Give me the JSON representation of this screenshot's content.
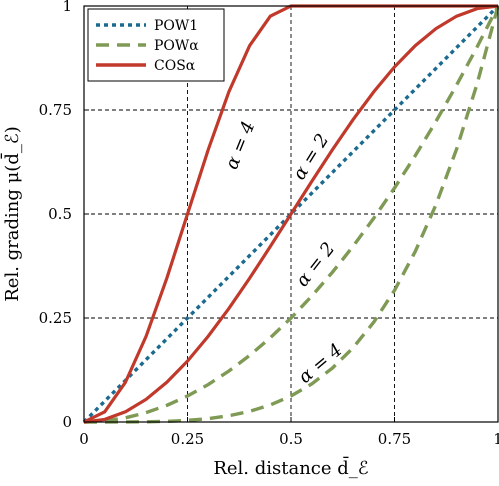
{
  "chart_data": {
    "type": "line",
    "xlabel": "Rel. distance  d̄_ℰ",
    "ylabel": "Rel. grading  μ(d̄_ℰ)",
    "xlim": [
      0,
      1
    ],
    "ylim": [
      0,
      1
    ],
    "x_ticks": [
      0,
      0.25,
      0.5,
      0.75,
      1
    ],
    "y_ticks": [
      0,
      0.25,
      0.5,
      0.75,
      1
    ],
    "x_tick_labels": [
      "0",
      "0.25",
      "0.5",
      "0.75",
      "1"
    ],
    "y_tick_labels": [
      "0",
      "0.25",
      "0.5",
      "0.75",
      "1"
    ],
    "grid": "dashed",
    "legend_position": "top-left",
    "legend": [
      "POW1",
      "POWα",
      "COSα"
    ],
    "colors": {
      "POW1": "#1a6b8f",
      "POWα": "#7f9a55",
      "COSα": "#c0392b"
    },
    "x": [
      0,
      0.05,
      0.1,
      0.15,
      0.2,
      0.25,
      0.3,
      0.35,
      0.4,
      0.45,
      0.5,
      0.55,
      0.6,
      0.65,
      0.7,
      0.75,
      0.8,
      0.85,
      0.9,
      0.95,
      1
    ],
    "series": [
      {
        "name": "POW1",
        "style": "dotted",
        "values": [
          0,
          0.05,
          0.1,
          0.15,
          0.2,
          0.25,
          0.3,
          0.35,
          0.4,
          0.45,
          0.5,
          0.55,
          0.6,
          0.65,
          0.7,
          0.75,
          0.8,
          0.85,
          0.9,
          0.95,
          1
        ]
      },
      {
        "name": "POWα",
        "style": "dashed",
        "values": [
          0,
          0.0025,
          0.01,
          0.0225,
          0.04,
          0.0625,
          0.09,
          0.1225,
          0.16,
          0.2025,
          0.25,
          0.3025,
          0.36,
          0.4225,
          0.49,
          0.5625,
          0.64,
          0.7225,
          0.81,
          0.9025,
          1
        ]
      },
      {
        "name": "POWα",
        "style": "dashed",
        "values": [
          0,
          6.3e-06,
          0.0001,
          0.0005,
          0.0016,
          0.0039,
          0.0081,
          0.015,
          0.0256,
          0.041,
          0.0625,
          0.0915,
          0.1296,
          0.1785,
          0.2401,
          0.3164,
          0.4096,
          0.522,
          0.6561,
          0.8145,
          1
        ]
      },
      {
        "name": "COSα",
        "style": "solid",
        "values": [
          0,
          0.0062,
          0.0245,
          0.0545,
          0.0955,
          0.1464,
          0.2061,
          0.273,
          0.3455,
          0.4218,
          0.5,
          0.5782,
          0.6545,
          0.727,
          0.7939,
          0.8536,
          0.9045,
          0.9455,
          0.9755,
          0.9938,
          1
        ]
      },
      {
        "name": "COSα",
        "style": "solid",
        "values": [
          0,
          0.0245,
          0.0955,
          0.2061,
          0.3455,
          0.5,
          0.6545,
          0.7939,
          0.9045,
          0.9755,
          1,
          1,
          1,
          1,
          1,
          1,
          1,
          1,
          1,
          1,
          1
        ]
      }
    ],
    "annotations": [
      {
        "text": "α = 4",
        "target": "COSα",
        "x": 0.39,
        "y": 0.66,
        "angle": -68
      },
      {
        "text": "α = 2",
        "target": "COSα",
        "x": 0.56,
        "y": 0.63,
        "angle": -58
      },
      {
        "text": "α = 2",
        "target": "POWα",
        "x": 0.57,
        "y": 0.37,
        "angle": -52
      },
      {
        "text": "α = 4",
        "target": "POWα",
        "x": 0.58,
        "y": 0.13,
        "angle": -40
      }
    ]
  }
}
